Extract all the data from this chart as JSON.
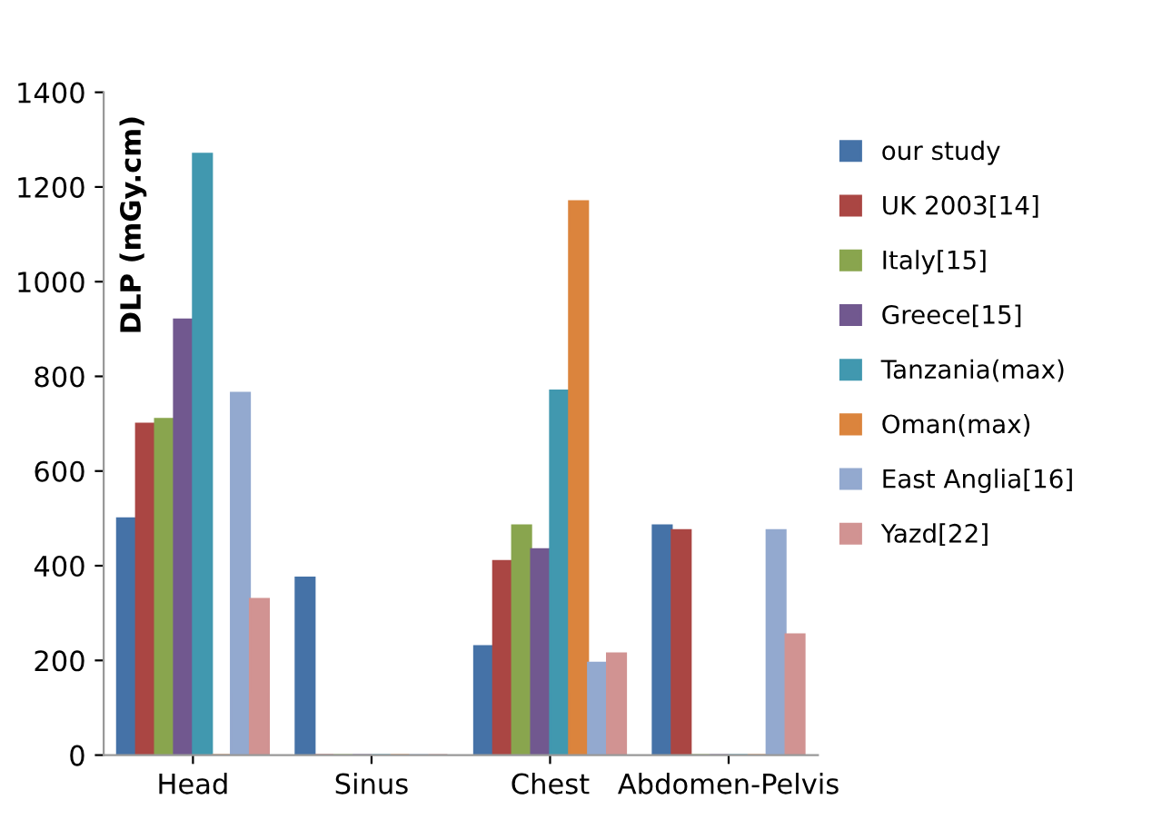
{
  "chart_data": {
    "type": "bar",
    "ylabel": "DLP (mGy.cm)",
    "categories": [
      "Head",
      "Sinus",
      "Chest",
      "Abdomen-Pelvis"
    ],
    "ylim": [
      0,
      1400
    ],
    "yticks": [
      0,
      200,
      400,
      600,
      800,
      1000,
      1200,
      1400
    ],
    "grid": false,
    "legend": "right",
    "series": [
      {
        "name": "our study",
        "color": "#4572a7",
        "values": [
          500,
          375,
          230,
          485
        ]
      },
      {
        "name": "UK 2003[14]",
        "color": "#aa4643",
        "values": [
          700,
          0,
          410,
          475
        ]
      },
      {
        "name": "Italy[15]",
        "color": "#89a54e",
        "values": [
          710,
          0,
          485,
          0
        ]
      },
      {
        "name": "Greece[15]",
        "color": "#71588f",
        "values": [
          920,
          0,
          435,
          0
        ]
      },
      {
        "name": "Tanzania(max)",
        "color": "#4198af",
        "values": [
          1270,
          0,
          770,
          0
        ]
      },
      {
        "name": "Oman(max)",
        "color": "#db843d",
        "values": [
          0,
          0,
          1170,
          0
        ]
      },
      {
        "name": "East Anglia[16]",
        "color": "#93a9cf",
        "values": [
          765,
          0,
          195,
          475
        ]
      },
      {
        "name": "Yazd[22]",
        "color": "#d19392",
        "values": [
          330,
          0,
          215,
          255
        ]
      }
    ]
  }
}
